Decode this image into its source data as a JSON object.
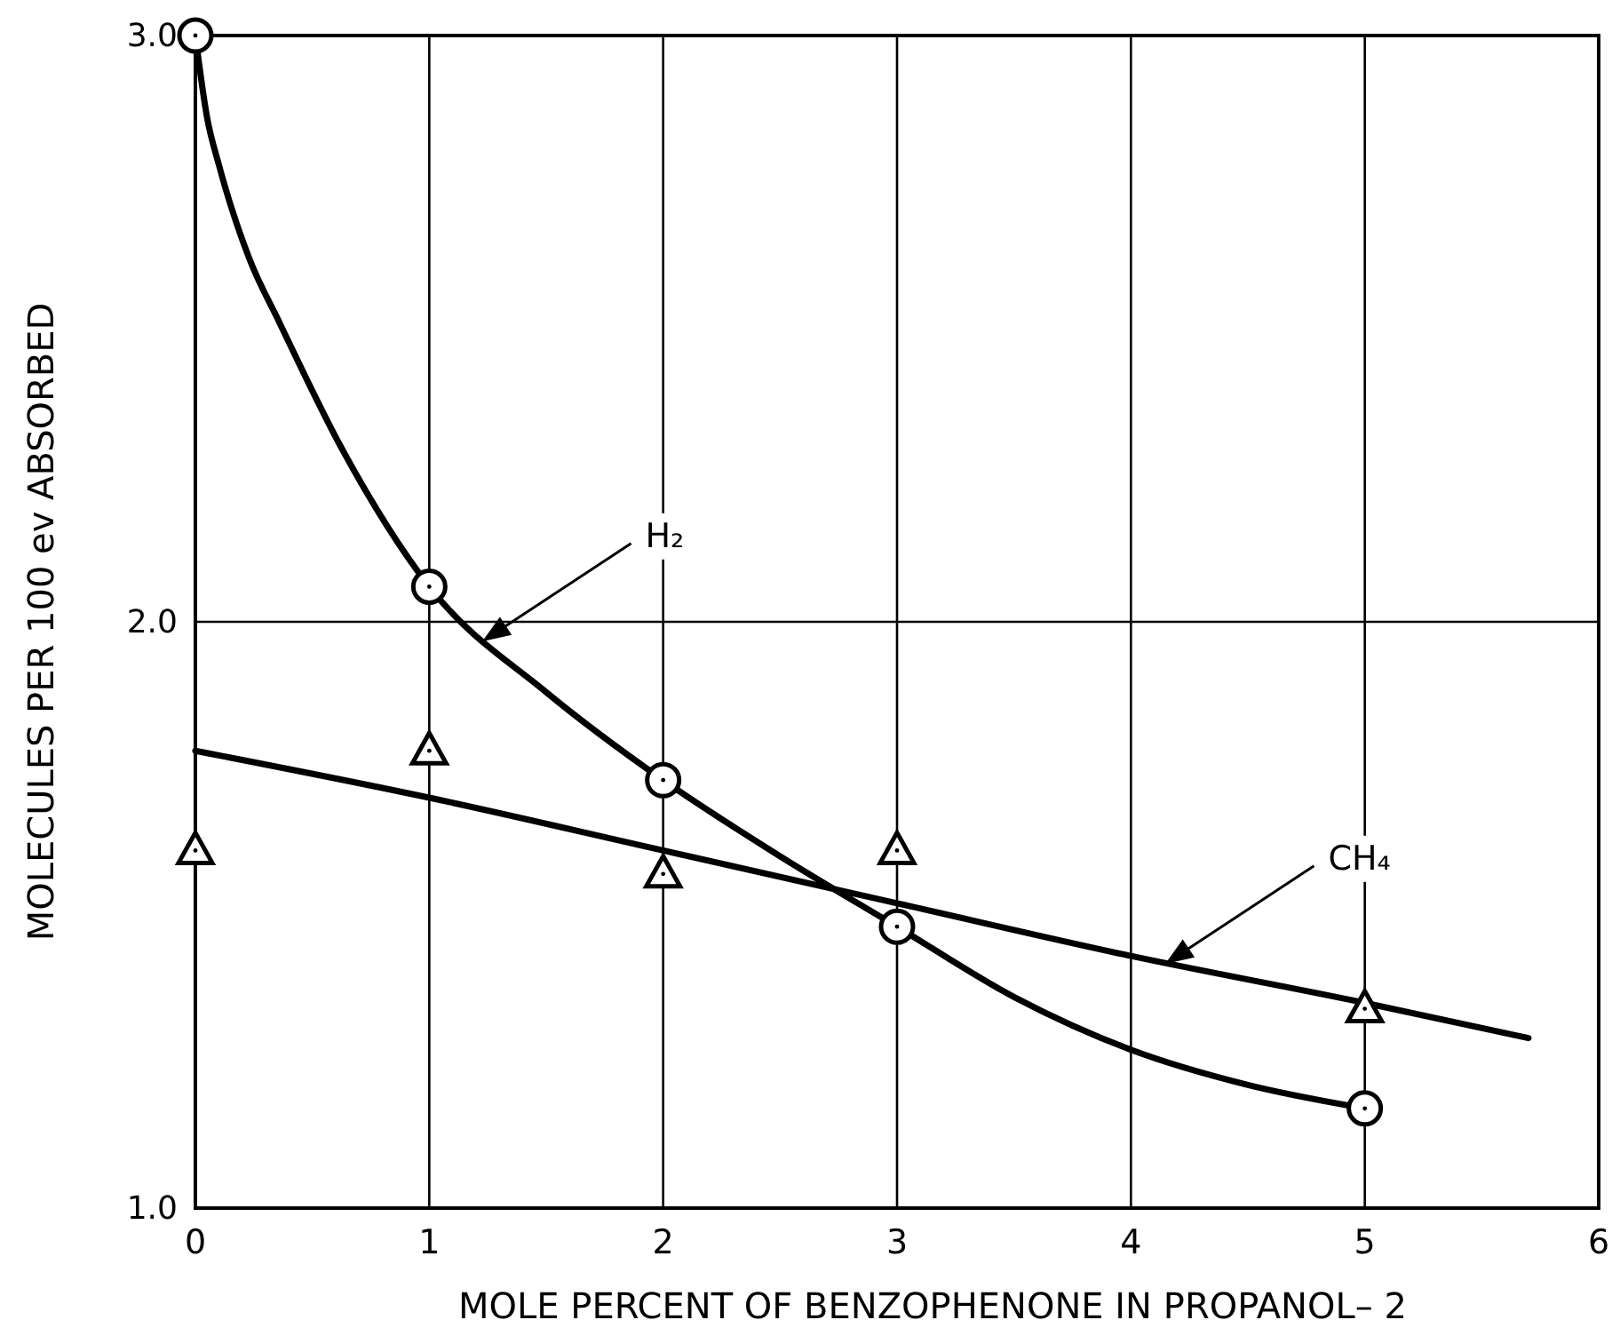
{
  "chart_data": {
    "type": "line",
    "xlabel": "MOLE  PERCENT  OF  BENZOPHENONE  IN  PROPANOL– 2",
    "ylabel": "MOLECULES  PER  100 ev  ABSORBED",
    "xlim": [
      0,
      6
    ],
    "xticks": [
      0,
      1,
      2,
      3,
      4,
      5,
      6
    ],
    "ylim": [
      1.0,
      3.0
    ],
    "yticks": [
      {
        "value": 1.0,
        "label": "1.0"
      },
      {
        "value": 2.0,
        "label": "2.0"
      },
      {
        "value": 3.0,
        "label": "3.0"
      }
    ],
    "grid": true,
    "series": [
      {
        "color": "#000000",
        "marker": "none",
        "line_style": "solid",
        "x": [
          0,
          0.05,
          0.1,
          0.23,
          0.36,
          0.62,
          1,
          1.5,
          2,
          2.5,
          3,
          3.5,
          4,
          4.5,
          5
        ],
        "values": [
          3.0,
          2.86,
          2.78,
          2.62,
          2.51,
          2.3,
          2.06,
          1.88,
          1.73,
          1.6,
          1.48,
          1.36,
          1.27,
          1.21,
          1.17
        ]
      },
      {
        "type": "scatter",
        "color": "#000000",
        "marker": "circle",
        "x": [
          0,
          1,
          2,
          3,
          5
        ],
        "values": [
          3.0,
          2.06,
          1.73,
          1.48,
          1.17
        ]
      },
      {
        "color": "#000000",
        "marker": "none",
        "line_style": "solid",
        "x": [
          0,
          1,
          2,
          3,
          4,
          5,
          5.7
        ],
        "values": [
          1.78,
          1.7,
          1.61,
          1.52,
          1.43,
          1.35,
          1.29
        ]
      },
      {
        "type": "scatter",
        "color": "#000000",
        "marker": "triangle",
        "x": [
          0,
          1,
          2,
          3,
          5
        ],
        "values": [
          1.61,
          1.78,
          1.57,
          1.61,
          1.34
        ]
      }
    ],
    "annotations": [
      {
        "text": "H₂",
        "x": 1.24,
        "y": 1.97
      },
      {
        "text": "CH₄",
        "x": 4.16,
        "y": 1.42
      }
    ]
  }
}
